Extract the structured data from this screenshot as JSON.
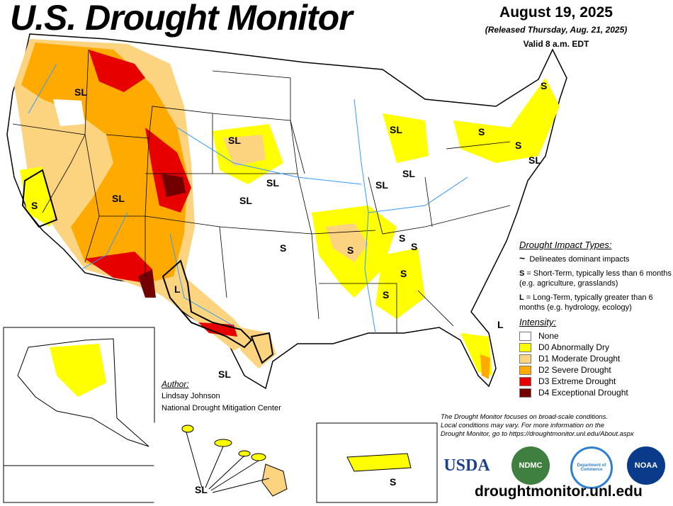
{
  "header": {
    "title": "U.S. Drought Monitor",
    "date": "August 19, 2025",
    "released": "(Released Thursday, Aug. 21, 2025)",
    "valid": "Valid 8 a.m. EDT"
  },
  "legend": {
    "impact_heading": "Drought Impact Types:",
    "delineates": "Delineates dominant impacts",
    "short_key": "S",
    "short_text": " = Short-Term, typically less than 6 months (e.g. agriculture, grasslands)",
    "long_key": "L",
    "long_text": " = Long-Term, typically greater than 6 months (e.g. hydrology, ecology)",
    "intensity_heading": "Intensity:",
    "categories": [
      {
        "label": "None",
        "color": "#ffffff"
      },
      {
        "label": "D0 Abnormally Dry",
        "color": "#ffff00"
      },
      {
        "label": "D1 Moderate Drought",
        "color": "#fcd37f"
      },
      {
        "label": "D2 Severe Drought",
        "color": "#ffaa00"
      },
      {
        "label": "D3 Extreme Drought",
        "color": "#e60000"
      },
      {
        "label": "D4 Exceptional Drought",
        "color": "#730000"
      }
    ]
  },
  "author": {
    "heading": "Author:",
    "name": "Lindsay Johnson",
    "org": "National Drought Mitigation Center"
  },
  "disclaimer": [
    "The Drought Monitor focuses on broad-scale conditions.",
    "Local conditions may vary. For more information on the",
    "Drought Monitor, go to https://droughtmonitor.unl.edu/About.aspx"
  ],
  "logos": {
    "usda": "USDA",
    "ndmc": "NDMC",
    "commerce": "Department of Commerce",
    "noaa": "NOAA"
  },
  "website": "droughtmonitor.unl.edu",
  "map_labels": [
    "SL",
    "SL",
    "SL",
    "SL",
    "SL",
    "S",
    "L",
    "SL",
    "S",
    "S",
    "S",
    "S",
    "S",
    "S",
    "SL",
    "SL",
    "SL",
    "S",
    "S",
    "SL",
    "S",
    "L",
    "S",
    "SL"
  ],
  "colors": {
    "water": "#3399ff",
    "boundary": "#000000"
  }
}
